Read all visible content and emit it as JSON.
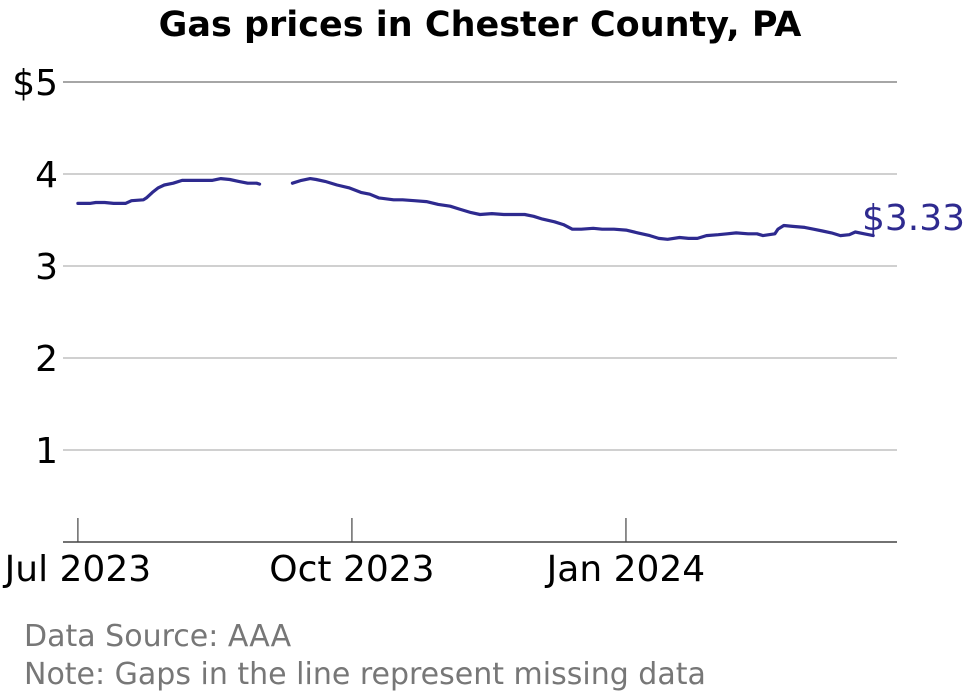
{
  "chart_data": {
    "type": "line",
    "title": "Gas prices in Chester County, PA",
    "xlabel": "",
    "ylabel": "",
    "ylim": [
      0,
      5
    ],
    "xlim": [
      "2023-06-26",
      "2024-04-01"
    ],
    "y_ticks": [
      1,
      2,
      3,
      4,
      5
    ],
    "y_tick_labels": [
      "1",
      "2",
      "3",
      "4",
      "$5"
    ],
    "x_ticks": [
      "2023-07-01",
      "2023-10-01",
      "2024-01-01"
    ],
    "x_tick_labels": [
      "Jul 2023",
      "Oct 2023",
      "Jan 2024"
    ],
    "grid": true,
    "line_color": "#2e2a8f",
    "end_label": "$3.33",
    "series": [
      {
        "segments": [
          [
            [
              "2023-07-01",
              3.68
            ],
            [
              "2023-07-05",
              3.68
            ],
            [
              "2023-07-07",
              3.69
            ],
            [
              "2023-07-10",
              3.69
            ],
            [
              "2023-07-13",
              3.68
            ],
            [
              "2023-07-17",
              3.68
            ],
            [
              "2023-07-19",
              3.71
            ],
            [
              "2023-07-23",
              3.72
            ],
            [
              "2023-07-24",
              3.74
            ],
            [
              "2023-07-26",
              3.8
            ],
            [
              "2023-07-28",
              3.85
            ],
            [
              "2023-07-30",
              3.88
            ],
            [
              "2023-08-02",
              3.9
            ],
            [
              "2023-08-05",
              3.93
            ],
            [
              "2023-08-08",
              3.93
            ],
            [
              "2023-08-12",
              3.93
            ],
            [
              "2023-08-15",
              3.93
            ],
            [
              "2023-08-18",
              3.95
            ],
            [
              "2023-08-21",
              3.94
            ],
            [
              "2023-08-24",
              3.92
            ],
            [
              "2023-08-27",
              3.9
            ],
            [
              "2023-08-30",
              3.9
            ],
            [
              "2023-08-31",
              3.89
            ]
          ],
          [
            [
              "2023-09-11",
              3.9
            ],
            [
              "2023-09-14",
              3.93
            ],
            [
              "2023-09-17",
              3.95
            ],
            [
              "2023-09-19",
              3.94
            ],
            [
              "2023-09-22",
              3.92
            ],
            [
              "2023-09-26",
              3.88
            ],
            [
              "2023-09-30",
              3.85
            ],
            [
              "2023-10-04",
              3.8
            ],
            [
              "2023-10-07",
              3.78
            ],
            [
              "2023-10-10",
              3.74
            ],
            [
              "2023-10-15",
              3.72
            ],
            [
              "2023-10-18",
              3.72
            ],
            [
              "2023-10-22",
              3.71
            ],
            [
              "2023-10-26",
              3.7
            ],
            [
              "2023-10-30",
              3.67
            ],
            [
              "2023-11-03",
              3.65
            ],
            [
              "2023-11-06",
              3.62
            ],
            [
              "2023-11-10",
              3.58
            ],
            [
              "2023-11-13",
              3.56
            ],
            [
              "2023-11-17",
              3.57
            ],
            [
              "2023-11-21",
              3.56
            ],
            [
              "2023-11-25",
              3.56
            ],
            [
              "2023-11-28",
              3.56
            ],
            [
              "2023-12-01",
              3.54
            ],
            [
              "2023-12-04",
              3.51
            ],
            [
              "2023-12-08",
              3.48
            ],
            [
              "2023-12-11",
              3.45
            ],
            [
              "2023-12-14",
              3.4
            ],
            [
              "2023-12-17",
              3.4
            ],
            [
              "2023-12-21",
              3.41
            ],
            [
              "2023-12-24",
              3.4
            ],
            [
              "2023-12-28",
              3.4
            ],
            [
              "2024-01-01",
              3.39
            ],
            [
              "2024-01-05",
              3.36
            ],
            [
              "2024-01-09",
              3.33
            ],
            [
              "2024-01-12",
              3.3
            ],
            [
              "2024-01-15",
              3.29
            ],
            [
              "2024-01-19",
              3.31
            ],
            [
              "2024-01-22",
              3.3
            ],
            [
              "2024-01-25",
              3.3
            ],
            [
              "2024-01-28",
              3.33
            ],
            [
              "2024-02-01",
              3.34
            ],
            [
              "2024-02-04",
              3.35
            ],
            [
              "2024-02-07",
              3.36
            ],
            [
              "2024-02-11",
              3.35
            ],
            [
              "2024-02-14",
              3.35
            ],
            [
              "2024-02-16",
              3.33
            ],
            [
              "2024-02-20",
              3.35
            ],
            [
              "2024-02-21",
              3.4
            ],
            [
              "2024-02-23",
              3.44
            ],
            [
              "2024-02-26",
              3.43
            ],
            [
              "2024-03-01",
              3.42
            ],
            [
              "2024-03-04",
              3.4
            ],
            [
              "2024-03-07",
              3.38
            ],
            [
              "2024-03-10",
              3.36
            ],
            [
              "2024-03-13",
              3.33
            ],
            [
              "2024-03-16",
              3.34
            ],
            [
              "2024-03-18",
              3.37
            ],
            [
              "2024-03-21",
              3.35
            ],
            [
              "2024-03-24",
              3.33
            ]
          ]
        ]
      }
    ]
  },
  "footer": {
    "source": "Data Source: AAA",
    "note": "Note: Gaps in the line represent missing data"
  }
}
